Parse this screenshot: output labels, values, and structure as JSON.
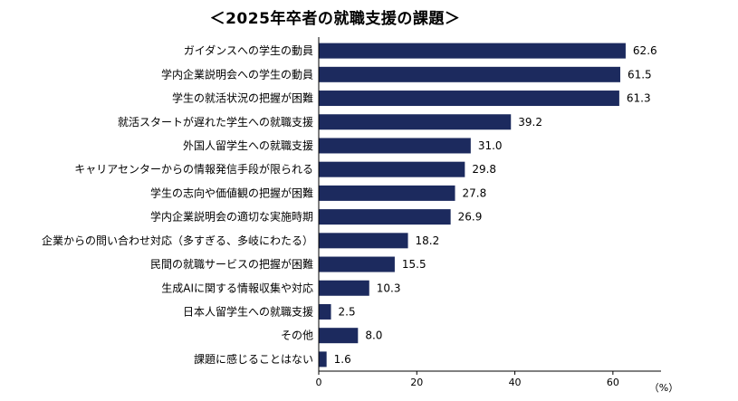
{
  "chart_data": {
    "type": "bar",
    "orientation": "horizontal",
    "title": "＜2025年卒者の就職支援の課題＞",
    "unit": "（%）",
    "categories": [
      "ガイダンスへの学生の動員",
      "学内企業説明会への学生の動員",
      "学生の就活状況の把握が困難",
      "就活スタートが遅れた学生への就職支援",
      "外国人留学生への就職支援",
      "キャリアセンターからの情報発信手段が限られる",
      "学生の志向や価値観の把握が困難",
      "学内企業説明会の適切な実施時期",
      "企業からの問い合わせ対応（多すぎる、多岐にわたる）",
      "民間の就職サービスの把握が困難",
      "生成AIに関する情報収集や対応",
      "日本人留学生への就職支援",
      "その他",
      "課題に感じることはない"
    ],
    "values": [
      62.6,
      61.5,
      61.3,
      39.2,
      31.0,
      29.8,
      27.8,
      26.9,
      18.2,
      15.5,
      10.3,
      2.5,
      8.0,
      1.6
    ],
    "value_labels": [
      "62.6",
      "61.5",
      "61.3",
      "39.2",
      "31.0",
      "29.8",
      "27.8",
      "26.9",
      "18.2",
      "15.5",
      "10.3",
      "2.5",
      "8.0",
      "1.6"
    ],
    "xlim": [
      0,
      70
    ],
    "xticks": [
      0,
      20,
      40,
      60
    ],
    "bar_color": "#1c2a5e",
    "grid": false
  }
}
